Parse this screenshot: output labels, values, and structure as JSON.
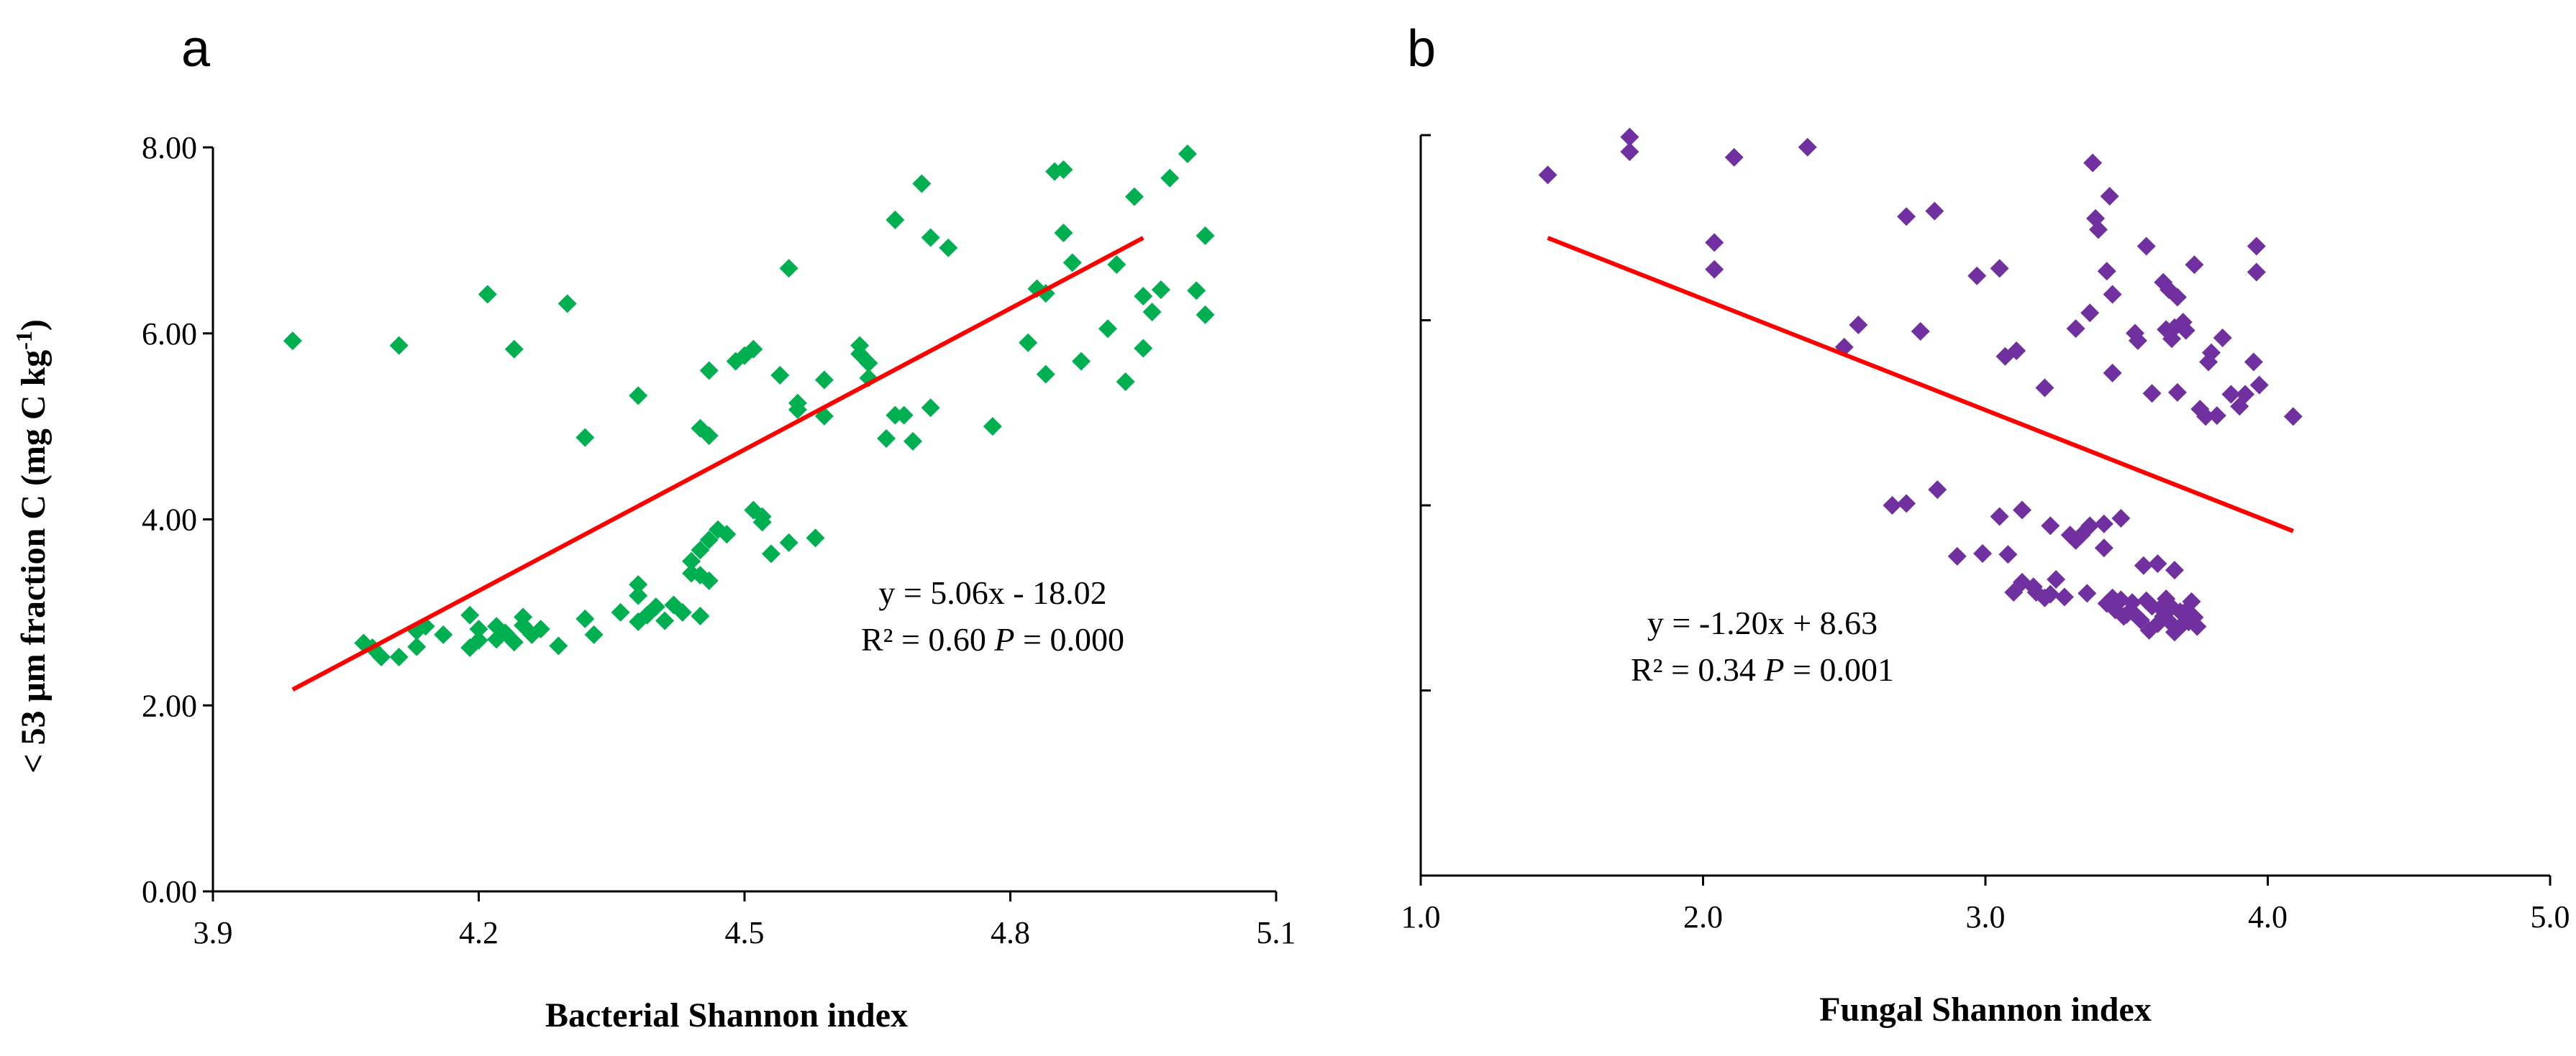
{
  "chart_data": [
    {
      "type": "scatter",
      "panel_label": "a",
      "xlabel": "Bacterial Shannon index",
      "ylabel_parts": [
        "< 53 μm fraction C (mg C kg",
        "-1",
        ")"
      ],
      "xlim": [
        3.9,
        5.1
      ],
      "ylim": [
        0,
        8
      ],
      "x_ticks": [
        "3.9",
        "4.2",
        "4.5",
        "4.8",
        "5.1"
      ],
      "y_ticks": [
        "0.00",
        "2.00",
        "4.00",
        "6.00",
        "8.00"
      ],
      "grid": false,
      "marker_color": "#00b050",
      "marker": "diamond",
      "trendline": {
        "slope": 5.06,
        "intercept": -18.02,
        "x_range": [
          3.99,
          4.95
        ],
        "color": "#ff0000"
      },
      "annotation": {
        "equation": "y = 5.06x - 18.02",
        "r2_text": "R² = 0.60 ",
        "p_label": "P",
        "p_text": " = 0.000"
      },
      "points": [
        [
          3.99,
          5.92
        ],
        [
          4.07,
          2.67
        ],
        [
          4.08,
          2.62
        ],
        [
          4.09,
          2.52
        ],
        [
          4.11,
          5.87
        ],
        [
          4.11,
          2.52
        ],
        [
          4.13,
          2.8
        ],
        [
          4.13,
          2.63
        ],
        [
          4.14,
          2.85
        ],
        [
          4.16,
          2.76
        ],
        [
          4.19,
          2.97
        ],
        [
          4.19,
          2.62
        ],
        [
          4.2,
          2.7
        ],
        [
          4.2,
          2.82
        ],
        [
          4.21,
          6.42
        ],
        [
          4.22,
          2.71
        ],
        [
          4.22,
          2.85
        ],
        [
          4.23,
          2.78
        ],
        [
          4.24,
          5.83
        ],
        [
          4.24,
          2.68
        ],
        [
          4.25,
          2.86
        ],
        [
          4.25,
          2.95
        ],
        [
          4.26,
          2.76
        ],
        [
          4.27,
          2.82
        ],
        [
          4.29,
          2.64
        ],
        [
          4.3,
          6.32
        ],
        [
          4.32,
          4.88
        ],
        [
          4.32,
          2.93
        ],
        [
          4.33,
          2.76
        ],
        [
          4.36,
          3.0
        ],
        [
          4.38,
          5.33
        ],
        [
          4.38,
          3.3
        ],
        [
          4.38,
          3.18
        ],
        [
          4.38,
          2.9
        ],
        [
          4.39,
          2.97
        ],
        [
          4.4,
          3.06
        ],
        [
          4.41,
          2.91
        ],
        [
          4.42,
          3.08
        ],
        [
          4.43,
          3.0
        ],
        [
          4.44,
          3.42
        ],
        [
          4.44,
          3.55
        ],
        [
          4.45,
          2.96
        ],
        [
          4.45,
          3.4
        ],
        [
          4.45,
          4.98
        ],
        [
          4.45,
          3.67
        ],
        [
          4.46,
          4.9
        ],
        [
          4.46,
          5.6
        ],
        [
          4.46,
          3.78
        ],
        [
          4.46,
          3.34
        ],
        [
          4.47,
          3.89
        ],
        [
          4.48,
          3.84
        ],
        [
          4.49,
          5.7
        ],
        [
          4.5,
          5.76
        ],
        [
          4.51,
          4.1
        ],
        [
          4.51,
          5.83
        ],
        [
          4.52,
          4.03
        ],
        [
          4.52,
          3.97
        ],
        [
          4.53,
          3.63
        ],
        [
          4.54,
          5.55
        ],
        [
          4.55,
          6.7
        ],
        [
          4.55,
          3.75
        ],
        [
          4.56,
          5.25
        ],
        [
          4.56,
          5.18
        ],
        [
          4.58,
          3.8
        ],
        [
          4.59,
          5.5
        ],
        [
          4.59,
          5.11
        ],
        [
          4.63,
          5.87
        ],
        [
          4.63,
          5.78
        ],
        [
          4.64,
          5.68
        ],
        [
          4.64,
          5.52
        ],
        [
          4.66,
          4.87
        ],
        [
          4.67,
          5.12
        ],
        [
          4.67,
          7.22
        ],
        [
          4.68,
          5.12
        ],
        [
          4.69,
          4.84
        ],
        [
          4.7,
          7.61
        ],
        [
          4.71,
          7.03
        ],
        [
          4.71,
          5.2
        ],
        [
          4.73,
          6.92
        ],
        [
          4.78,
          5.0
        ],
        [
          4.82,
          5.9
        ],
        [
          4.83,
          6.48
        ],
        [
          4.84,
          6.43
        ],
        [
          4.84,
          5.56
        ],
        [
          4.85,
          7.74
        ],
        [
          4.86,
          7.76
        ],
        [
          4.86,
          7.08
        ],
        [
          4.87,
          6.76
        ],
        [
          4.88,
          5.7
        ],
        [
          4.91,
          6.05
        ],
        [
          4.92,
          6.74
        ],
        [
          4.93,
          5.48
        ],
        [
          4.94,
          7.47
        ],
        [
          4.95,
          6.4
        ],
        [
          4.95,
          5.84
        ],
        [
          4.96,
          6.23
        ],
        [
          4.97,
          6.47
        ],
        [
          4.98,
          7.67
        ],
        [
          5.0,
          7.93
        ],
        [
          5.01,
          6.46
        ],
        [
          5.02,
          7.05
        ],
        [
          5.02,
          6.2
        ]
      ]
    },
    {
      "type": "scatter",
      "panel_label": "b",
      "xlabel": "Fungal Shannon index",
      "xlim": [
        1.0,
        5.0
      ],
      "ylim": [
        0,
        8
      ],
      "x_ticks": [
        "1.0",
        "2.0",
        "3.0",
        "4.0",
        "5.0"
      ],
      "y_ticks": [],
      "grid": false,
      "marker_color": "#7030a0",
      "marker": "diamond",
      "trendline": {
        "slope": -1.2,
        "intercept": 8.63,
        "x_range": [
          1.45,
          4.09
        ],
        "color": "#ff0000"
      },
      "annotation": {
        "equation": "y = -1.20x + 8.63",
        "r2_text": "R² = 0.34  ",
        "p_label": "P",
        "p_text": " = 0.001"
      },
      "points": [
        [
          1.45,
          7.57
        ],
        [
          1.74,
          7.98
        ],
        [
          1.74,
          7.82
        ],
        [
          2.04,
          6.84
        ],
        [
          2.04,
          6.55
        ],
        [
          2.11,
          7.76
        ],
        [
          2.37,
          7.87
        ],
        [
          2.5,
          5.71
        ],
        [
          2.55,
          5.95
        ],
        [
          2.67,
          4.0
        ],
        [
          2.72,
          7.12
        ],
        [
          2.72,
          4.02
        ],
        [
          2.77,
          5.88
        ],
        [
          2.82,
          7.18
        ],
        [
          2.83,
          4.17
        ],
        [
          2.9,
          3.45
        ],
        [
          2.97,
          6.48
        ],
        [
          2.99,
          3.48
        ],
        [
          3.05,
          6.56
        ],
        [
          3.05,
          3.88
        ],
        [
          3.07,
          5.61
        ],
        [
          3.08,
          3.47
        ],
        [
          3.1,
          3.06
        ],
        [
          3.11,
          5.67
        ],
        [
          3.13,
          3.95
        ],
        [
          3.13,
          3.17
        ],
        [
          3.17,
          3.12
        ],
        [
          3.18,
          3.06
        ],
        [
          3.21,
          3.0
        ],
        [
          3.21,
          5.27
        ],
        [
          3.23,
          3.78
        ],
        [
          3.23,
          3.04
        ],
        [
          3.25,
          3.2
        ],
        [
          3.28,
          3.01
        ],
        [
          3.3,
          3.68
        ],
        [
          3.32,
          5.91
        ],
        [
          3.32,
          3.62
        ],
        [
          3.34,
          3.68
        ],
        [
          3.36,
          3.05
        ],
        [
          3.37,
          6.08
        ],
        [
          3.37,
          3.78
        ],
        [
          3.38,
          7.7
        ],
        [
          3.39,
          7.1
        ],
        [
          3.4,
          6.98
        ],
        [
          3.42,
          3.8
        ],
        [
          3.42,
          3.54
        ],
        [
          3.43,
          6.53
        ],
        [
          3.43,
          2.94
        ],
        [
          3.44,
          7.34
        ],
        [
          3.45,
          6.28
        ],
        [
          3.45,
          5.43
        ],
        [
          3.45,
          3.0
        ],
        [
          3.46,
          2.87
        ],
        [
          3.48,
          3.86
        ],
        [
          3.48,
          2.98
        ],
        [
          3.49,
          2.8
        ],
        [
          3.5,
          2.82
        ],
        [
          3.52,
          2.95
        ],
        [
          3.52,
          2.85
        ],
        [
          3.53,
          5.86
        ],
        [
          3.54,
          5.78
        ],
        [
          3.55,
          2.76
        ],
        [
          3.56,
          3.35
        ],
        [
          3.57,
          6.8
        ],
        [
          3.57,
          2.97
        ],
        [
          3.58,
          2.65
        ],
        [
          3.59,
          2.91
        ],
        [
          3.59,
          5.21
        ],
        [
          3.61,
          2.72
        ],
        [
          3.61,
          3.37
        ],
        [
          3.62,
          2.89
        ],
        [
          3.63,
          6.41
        ],
        [
          3.63,
          2.8
        ],
        [
          3.64,
          5.9
        ],
        [
          3.64,
          2.99
        ],
        [
          3.65,
          6.33
        ],
        [
          3.65,
          2.75
        ],
        [
          3.66,
          5.8
        ],
        [
          3.66,
          2.9
        ],
        [
          3.67,
          2.63
        ],
        [
          3.67,
          3.3
        ],
        [
          3.67,
          5.92
        ],
        [
          3.68,
          5.22
        ],
        [
          3.68,
          6.25
        ],
        [
          3.69,
          2.85
        ],
        [
          3.7,
          5.98
        ],
        [
          3.7,
          2.72
        ],
        [
          3.71,
          2.86
        ],
        [
          3.71,
          5.89
        ],
        [
          3.72,
          2.74
        ],
        [
          3.73,
          2.96
        ],
        [
          3.74,
          6.6
        ],
        [
          3.74,
          2.79
        ],
        [
          3.75,
          2.69
        ],
        [
          3.76,
          5.04
        ],
        [
          3.78,
          4.96
        ],
        [
          3.79,
          5.55
        ],
        [
          3.8,
          5.65
        ],
        [
          3.82,
          4.97
        ],
        [
          3.84,
          5.81
        ],
        [
          3.87,
          5.2
        ],
        [
          3.9,
          5.07
        ],
        [
          3.92,
          5.2
        ],
        [
          3.95,
          5.55
        ],
        [
          3.96,
          6.8
        ],
        [
          3.96,
          6.52
        ],
        [
          3.97,
          5.3
        ],
        [
          4.09,
          4.96
        ]
      ]
    }
  ]
}
